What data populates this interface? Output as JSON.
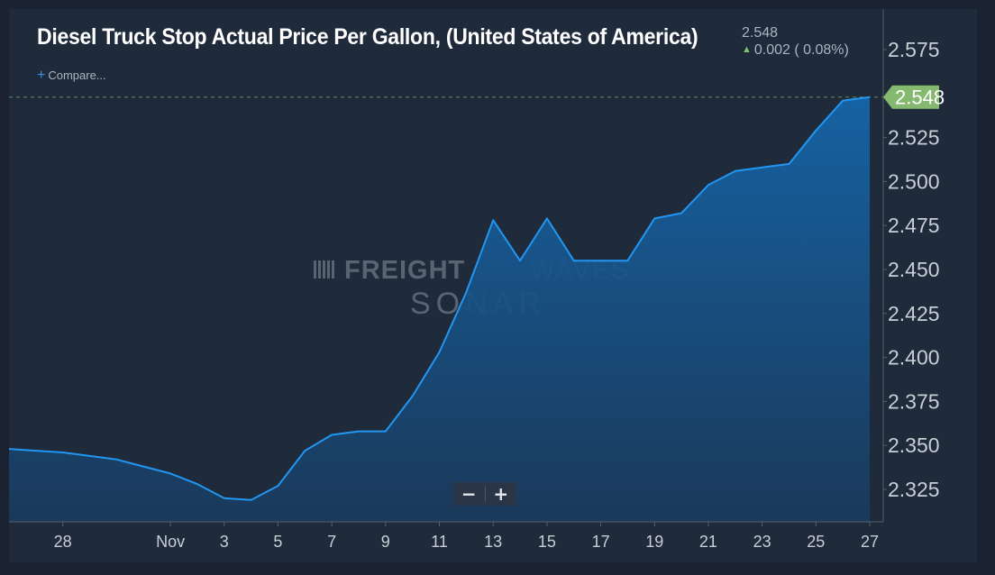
{
  "header": {
    "title": "Diesel Truck Stop Actual Price Per Gallon, (United States of America)",
    "last_value": "2.548",
    "change_text": "0.002 ( 0.08%)",
    "change_direction_icon": "arrow-up-icon",
    "compare_label": "Compare..."
  },
  "watermark": {
    "line1_bold": "FREIGHT",
    "line1_light": "WAVES",
    "line2": "SONAR"
  },
  "zoom": {
    "minus_label": "−",
    "plus_label": "+"
  },
  "colors": {
    "background": "#1f2a3a",
    "line": "#2196f3",
    "price_tag": "#84b96f",
    "positive": "#7ec46a"
  },
  "chart_data": {
    "type": "area",
    "title": "Diesel Truck Stop Actual Price Per Gallon, (United States of America)",
    "xlabel": "",
    "ylabel": "",
    "x_tick_labels": [
      "28",
      "Nov",
      "3",
      "5",
      "7",
      "9",
      "11",
      "13",
      "15",
      "17",
      "19",
      "21",
      "23",
      "25",
      "27"
    ],
    "x_tick_dates": [
      "2019-10-28",
      "2019-11-01",
      "2019-11-03",
      "2019-11-05",
      "2019-11-07",
      "2019-11-09",
      "2019-11-11",
      "2019-11-13",
      "2019-11-15",
      "2019-11-17",
      "2019-11-19",
      "2019-11-21",
      "2019-11-23",
      "2019-11-25",
      "2019-11-27"
    ],
    "y_tick_labels": [
      "2.325",
      "2.350",
      "2.375",
      "2.400",
      "2.425",
      "2.450",
      "2.475",
      "2.500",
      "2.525",
      "2.575"
    ],
    "ylim": [
      2.31,
      2.585
    ],
    "grid": false,
    "last_price_label": "2.548",
    "series": [
      {
        "x": [
          "2019-10-26",
          "2019-10-27",
          "2019-10-28",
          "2019-10-29",
          "2019-10-30",
          "2019-10-31",
          "2019-11-01",
          "2019-11-02",
          "2019-11-03",
          "2019-11-04",
          "2019-11-05",
          "2019-11-06",
          "2019-11-07",
          "2019-11-08",
          "2019-11-09",
          "2019-11-10",
          "2019-11-11",
          "2019-11-12",
          "2019-11-13",
          "2019-11-14",
          "2019-11-15",
          "2019-11-16",
          "2019-11-17",
          "2019-11-18",
          "2019-11-19",
          "2019-11-20",
          "2019-11-21",
          "2019-11-22",
          "2019-11-23",
          "2019-11-24",
          "2019-11-25",
          "2019-11-26",
          "2019-11-27"
        ],
        "values": [
          2.348,
          2.347,
          2.346,
          2.344,
          2.342,
          2.338,
          2.334,
          2.328,
          2.32,
          2.319,
          2.327,
          2.347,
          2.356,
          2.358,
          2.358,
          2.378,
          2.403,
          2.437,
          2.478,
          2.455,
          2.479,
          2.455,
          2.455,
          2.455,
          2.479,
          2.482,
          2.498,
          2.506,
          2.508,
          2.51,
          2.529,
          2.546,
          2.548
        ]
      }
    ]
  }
}
